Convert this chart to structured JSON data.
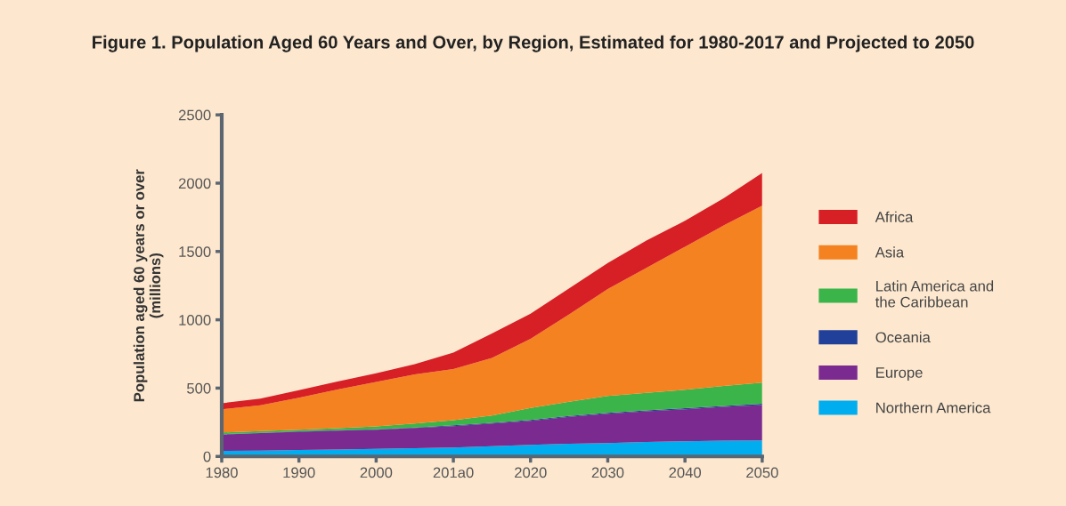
{
  "chart_data": {
    "type": "area",
    "stacked": true,
    "title": "Figure 1. Population Aged 60 Years and Over, by Region, Estimated for 1980-2017 and Projected to 2050",
    "ylabel": "Population aged 60 years or over\n(millions)",
    "x": [
      1980,
      1985,
      1990,
      1995,
      2000,
      2005,
      2010,
      2015,
      2020,
      2025,
      2030,
      2035,
      2040,
      2045,
      2050
    ],
    "series": [
      {
        "name": "Northern America",
        "color": "#00aeef",
        "values": [
          40,
          43,
          47,
          51,
          55,
          60,
          65,
          75,
          85,
          92,
          98,
          105,
          111,
          115,
          117
        ]
      },
      {
        "name": "Europe",
        "color": "#7b2a90",
        "values": [
          120,
          127,
          133,
          137,
          140,
          148,
          157,
          165,
          175,
          198,
          214,
          225,
          234,
          247,
          259
        ]
      },
      {
        "name": "Oceania",
        "color": "#21409a",
        "values": [
          3,
          3,
          3,
          4,
          4,
          4,
          5,
          5,
          6,
          6,
          7,
          7,
          8,
          8,
          9
        ]
      },
      {
        "name": "Latin America and\nthe Caribbean",
        "color": "#3bb54a",
        "values": [
          12,
          12,
          12,
          14,
          21,
          28,
          38,
          55,
          89,
          104,
          124,
          128,
          135,
          145,
          155
        ]
      },
      {
        "name": "Asia",
        "color": "#f58220",
        "values": [
          170,
          190,
          235,
          284,
          325,
          360,
          375,
          420,
          505,
          640,
          782,
          915,
          1047,
          1175,
          1295
        ]
      },
      {
        "name": "Africa",
        "color": "#d71f26",
        "values": [
          44,
          48,
          55,
          58,
          63,
          75,
          120,
          180,
          185,
          190,
          190,
          200,
          190,
          200,
          240
        ]
      }
    ],
    "xlim": [
      1980,
      2050
    ],
    "xticks": [
      1980,
      1990,
      2000,
      {
        "value": 2010,
        "label": "201a0"
      },
      2020,
      2030,
      2040,
      2050
    ],
    "ylim": [
      0,
      2500
    ],
    "yticks": [
      0,
      500,
      1000,
      1500,
      2000,
      2500
    ],
    "legend": "right",
    "grid": false
  }
}
